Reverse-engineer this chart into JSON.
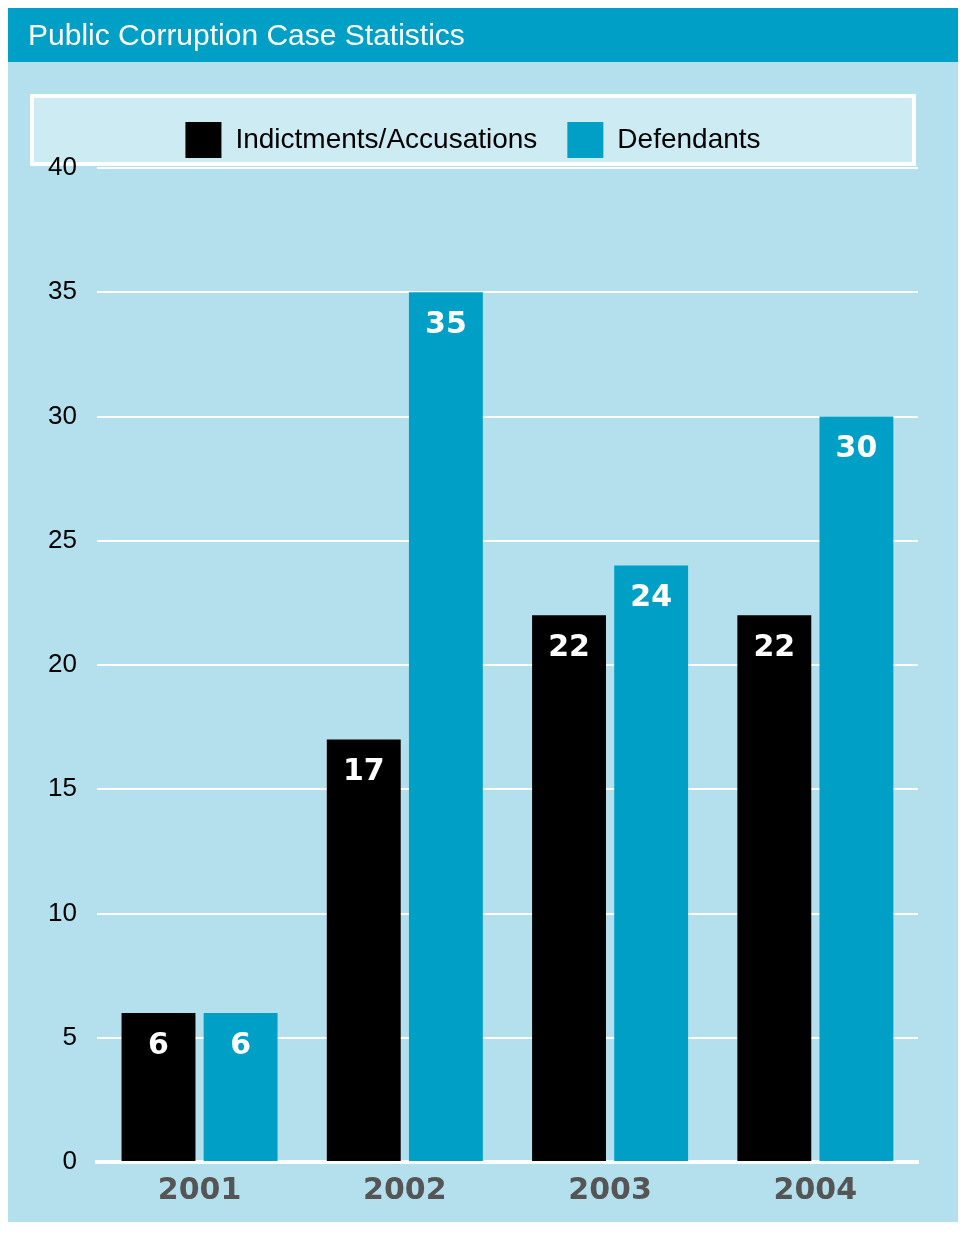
{
  "chart_data": {
    "type": "bar",
    "title": "Public Corruption Case Statistics",
    "categories": [
      "2001",
      "2002",
      "2003",
      "2004"
    ],
    "series": [
      {
        "name": "Indictments/Accusations",
        "color": "#000000",
        "values": [
          6,
          17,
          22,
          22
        ]
      },
      {
        "name": "Defendants",
        "color": "#00a0c6",
        "values": [
          6,
          35,
          24,
          30
        ]
      }
    ],
    "ylim": [
      0,
      40
    ],
    "yticks": [
      0,
      5,
      10,
      15,
      20,
      25,
      30,
      35,
      40
    ],
    "grid": "y",
    "legend": "top",
    "data_labels": true
  }
}
